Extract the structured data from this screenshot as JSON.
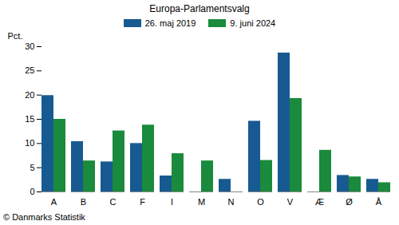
{
  "chart_data": {
    "type": "bar",
    "title": "Europa-Parlamentsvalg",
    "caption": "© Danmarks Statistik",
    "y_label": "Pct.",
    "categories": [
      "A",
      "B",
      "C",
      "F",
      "I",
      "M",
      "N",
      "O",
      "V",
      "Æ",
      "Ø",
      "Å"
    ],
    "series": [
      {
        "name": "26. maj 2019",
        "color": "#175a92",
        "values": [
          19.9,
          10.4,
          6.2,
          10.0,
          3.3,
          null,
          2.6,
          14.6,
          28.7,
          null,
          3.4,
          2.6
        ]
      },
      {
        "name": "9. juni 2024",
        "color": "#1a8a3c",
        "values": [
          15.0,
          6.4,
          12.6,
          13.8,
          7.9,
          6.4,
          null,
          6.5,
          19.3,
          8.6,
          3.1,
          1.9
        ]
      }
    ],
    "ylim": [
      0,
      30
    ],
    "yticks": [
      0,
      5,
      10,
      15,
      20,
      25,
      30
    ],
    "grid": false,
    "legend": "top"
  }
}
